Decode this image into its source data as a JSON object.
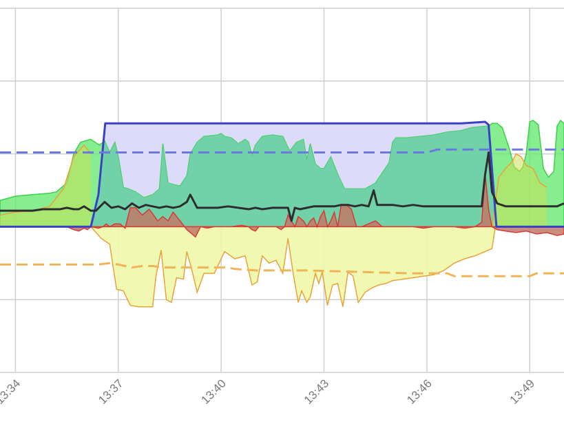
{
  "chart_data": {
    "type": "area",
    "title": "",
    "xlabel": "",
    "ylabel": "",
    "grid": true,
    "legend": "none",
    "x_domain_minutes": [
      13.55,
      30.0
    ],
    "y_domain": [
      -100,
      150
    ],
    "x_tick_labels": [
      "13:34",
      "13:37",
      "13:40",
      "13:43",
      "13:46",
      "13:49"
    ],
    "x_tick_minutes": [
      14,
      17,
      20,
      23,
      26,
      29
    ],
    "y_gridlines": [
      -100,
      -50,
      0,
      50,
      100,
      150
    ],
    "colors": {
      "grid": "#cfcfcf",
      "blue_fill": "#dcdcfa",
      "blue_line": "#3a3fc4",
      "green_fill": "#5fe86a",
      "green_line": "#3ccf49",
      "green_dark_fill": "#4fcf80",
      "orange_line": "#e8a23a",
      "red_fill": "#c07a6a",
      "red_line": "#d63a32",
      "yellow_fill": "#eef7a8",
      "black_line": "#2d2d2d",
      "blue_dash": "#6a78e0",
      "orange_dash": "#f0b458"
    },
    "series": [
      {
        "role": "blue-area",
        "x": [
          13.55,
          16.2,
          16.42,
          16.62,
          20,
          23,
          25,
          26,
          27,
          27.7,
          27.8,
          28.03,
          30.0
        ],
        "y": [
          0,
          0,
          22,
          71,
          71,
          71,
          71,
          71,
          71,
          72,
          70,
          0,
          0
        ]
      },
      {
        "role": "green-area",
        "x": [
          13.55,
          14,
          14.5,
          15,
          15.2,
          15.5,
          15.7,
          15.9,
          16.2,
          16.45,
          16.6,
          16.75,
          16.9,
          17.0,
          17.15,
          17.3,
          17.5,
          17.75,
          18.0,
          18.2,
          18.3,
          18.45,
          18.6,
          18.8,
          19.0,
          19.1,
          19.3,
          19.5,
          19.9,
          20.0,
          20.1,
          20.3,
          20.5,
          20.7,
          20.8,
          20.9,
          21.0,
          21.2,
          21.5,
          21.8,
          21.9,
          22.0,
          22.2,
          22.4,
          22.5,
          22.6,
          22.75,
          22.9,
          23.0,
          23.2,
          23.4,
          23.6,
          23.9,
          24.2,
          24.5,
          24.7,
          24.9,
          25.0,
          25.1,
          25.4,
          25.8,
          26.2,
          26.6,
          27.0,
          27.3,
          27.7,
          27.8,
          27.9,
          28.05,
          28.2,
          28.4,
          28.55,
          28.7,
          28.8,
          28.9,
          29.0,
          29.1,
          29.25,
          29.4,
          29.55,
          29.7,
          29.8,
          29.9,
          30.0
        ],
        "y": [
          18,
          21,
          22,
          23,
          24,
          30,
          50,
          58,
          60,
          56,
          59,
          51,
          58,
          48,
          27,
          26,
          24,
          20,
          22,
          26,
          57,
          30,
          29,
          28,
          35,
          50,
          58,
          62,
          63,
          64,
          62,
          61,
          57,
          60,
          58,
          49,
          56,
          62,
          63,
          62,
          57,
          52,
          58,
          60,
          46,
          57,
          43,
          40,
          40,
          48,
          36,
          26,
          26,
          26,
          30,
          37,
          44,
          58,
          61,
          61,
          62,
          63,
          65,
          66,
          68,
          69,
          69,
          71,
          71,
          68,
          54,
          41,
          38,
          41,
          50,
          72,
          73,
          70,
          40,
          34,
          38,
          69,
          73,
          71
        ]
      },
      {
        "role": "orange-line",
        "x": [
          13.55,
          14,
          14.5,
          15,
          15.4,
          15.7,
          16.0,
          16.2
        ],
        "y": [
          8,
          10,
          11,
          14,
          26,
          48,
          56,
          50
        ]
      },
      {
        "role": "orange-line-right",
        "x": [
          27.9,
          28.1,
          28.3,
          28.5,
          28.6,
          28.75,
          28.9,
          29.1,
          29.3,
          29.5
        ],
        "y": [
          0,
          34,
          40,
          45,
          50,
          48,
          42,
          40,
          30,
          27
        ]
      },
      {
        "role": "red-area",
        "x": [
          13.55,
          15.0,
          15.5,
          15.7,
          15.85,
          16.0,
          16.1,
          16.2,
          16.42,
          16.55,
          16.65,
          16.75,
          16.9,
          17.05,
          17.2,
          17.35,
          17.5,
          17.7,
          17.9,
          18.0,
          18.15,
          18.3,
          18.45,
          18.6,
          18.8,
          19.0,
          19.25,
          19.4,
          19.6,
          19.8,
          20.0,
          20.3,
          20.6,
          20.8,
          20.9,
          21.0,
          21.1,
          21.3,
          21.6,
          21.75,
          21.85,
          21.95,
          22.05,
          22.15,
          22.25,
          22.4,
          22.5,
          22.6,
          22.7,
          22.8,
          22.9,
          23.0,
          23.1,
          23.2,
          23.3,
          23.4,
          23.5,
          23.65,
          23.8,
          23.95,
          24.1,
          24.3,
          24.5,
          24.7,
          25.0,
          25.3,
          25.6,
          25.9,
          26.2,
          26.5,
          26.8,
          27.1,
          27.4,
          27.6,
          27.7,
          27.8,
          27.9,
          28.05,
          28.3,
          28.6,
          28.9,
          29.2,
          29.5,
          29.8,
          30.0
        ],
        "y": [
          0,
          0,
          0,
          -2,
          -3,
          -1,
          -2,
          0,
          -1,
          0,
          2,
          0,
          2,
          2,
          -1,
          13,
          13,
          8,
          12,
          9,
          4,
          7,
          4,
          10,
          4,
          -2,
          -7,
          0,
          -1,
          0,
          0,
          0,
          1,
          0,
          -2,
          -3,
          0,
          0,
          0,
          -2,
          0,
          8,
          4,
          0,
          7,
          4,
          0,
          4,
          6,
          0,
          7,
          11,
          0,
          4,
          10,
          0,
          15,
          15,
          12,
          0,
          0,
          2,
          4,
          0,
          0,
          0,
          0,
          -1,
          0,
          0,
          0,
          -1,
          0,
          3,
          36,
          12,
          0,
          -2,
          -3,
          -4,
          -3,
          -5,
          -4,
          -6,
          -5
        ]
      },
      {
        "role": "black-line",
        "x": [
          13.55,
          14,
          14.5,
          14.8,
          15.0,
          15.3,
          15.5,
          15.7,
          15.85,
          16.0,
          16.2,
          16.35,
          16.6,
          16.8,
          17.0,
          17.2,
          17.4,
          17.6,
          17.8,
          18.0,
          18.2,
          18.4,
          18.6,
          18.8,
          19.0,
          19.1,
          19.3,
          19.6,
          19.9,
          20.2,
          20.5,
          20.8,
          21.0,
          21.2,
          21.5,
          21.8,
          21.95,
          22.05,
          22.15,
          22.3,
          22.5,
          22.7,
          22.9,
          23.1,
          23.3,
          23.5,
          23.7,
          23.9,
          24.1,
          24.3,
          24.45,
          24.55,
          24.65,
          24.8,
          25.0,
          25.3,
          25.6,
          25.9,
          26.2,
          26.5,
          26.8,
          27.1,
          27.4,
          27.6,
          27.7,
          27.8,
          27.9,
          28.05,
          28.3,
          28.6,
          28.9,
          29.2,
          29.5,
          29.8,
          30.0
        ],
        "y": [
          11,
          11,
          11,
          12,
          12,
          12,
          13,
          12,
          12,
          14,
          11,
          11,
          17,
          13,
          14,
          12,
          16,
          13,
          15,
          14,
          13,
          14,
          13,
          14,
          17,
          22,
          13,
          13,
          13,
          14,
          13,
          12,
          13,
          12,
          13,
          13,
          13,
          4,
          13,
          12,
          13,
          14,
          14,
          14,
          14,
          15,
          15,
          14,
          15,
          14,
          25,
          15,
          15,
          15,
          15,
          14,
          15,
          14,
          14,
          14,
          14,
          14,
          14,
          14,
          36,
          51,
          24,
          16,
          14,
          14,
          14,
          14,
          14,
          14,
          16
        ]
      },
      {
        "role": "yellow-area",
        "x": [
          16.2,
          16.5,
          16.75,
          16.95,
          17.15,
          17.35,
          17.6,
          17.8,
          18.0,
          18.1,
          18.25,
          18.4,
          18.55,
          18.7,
          18.9,
          19.0,
          19.15,
          19.3,
          19.5,
          19.8,
          20.1,
          20.4,
          20.7,
          20.9,
          21.05,
          21.2,
          21.4,
          21.6,
          21.8,
          21.95,
          22.1,
          22.25,
          22.35,
          22.5,
          22.6,
          22.75,
          22.85,
          22.95,
          23.1,
          23.25,
          23.4,
          23.55,
          23.7,
          23.85,
          24.0,
          24.2,
          24.4,
          24.6,
          24.8,
          25.0,
          25.3,
          25.6,
          25.9,
          26.2,
          26.5,
          26.8,
          27.1,
          27.4,
          27.7,
          27.9,
          28.0
        ],
        "y": [
          0,
          -8,
          -12,
          -43,
          -44,
          -54,
          -55,
          -55,
          -55,
          -34,
          -16,
          -50,
          -52,
          -35,
          -36,
          -17,
          -30,
          -45,
          -32,
          -32,
          -17,
          -22,
          -20,
          -40,
          -38,
          -20,
          -25,
          -23,
          -32,
          -8,
          -32,
          -52,
          -44,
          -52,
          -48,
          -32,
          -39,
          -31,
          -54,
          -40,
          -39,
          -55,
          -31,
          -34,
          -52,
          -45,
          -42,
          -40,
          -39,
          -37,
          -36,
          -35,
          -34,
          -33,
          -30,
          -25,
          -22,
          -20,
          -17,
          -15,
          0
        ]
      },
      {
        "role": "blue-dashed-line",
        "x": [
          13.55,
          26.0,
          26.3,
          30.0
        ],
        "y": [
          51,
          51,
          53,
          53
        ]
      },
      {
        "role": "orange-dashed-line",
        "x": [
          13.55,
          16.2,
          16.4,
          16.75,
          17.0,
          17.2,
          17.4,
          17.7,
          18.0,
          18.3,
          18.6,
          19.0,
          20.2,
          20.4,
          21.0,
          22.5,
          24.0,
          25.5,
          26.6,
          26.8,
          28.0,
          29.0,
          29.2,
          30.0
        ],
        "y": [
          -26,
          -26,
          -26,
          -25,
          -26,
          -27,
          -28,
          -27,
          -27,
          -28,
          -28,
          -28,
          -28,
          -29,
          -30,
          -30,
          -31,
          -32,
          -32,
          -34,
          -34,
          -34,
          -32,
          -32
        ]
      }
    ]
  }
}
